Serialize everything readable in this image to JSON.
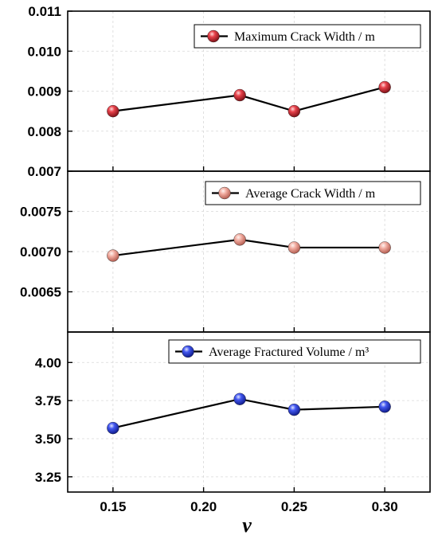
{
  "chart_data": [
    {
      "type": "line",
      "x": [
        0.15,
        0.22,
        0.25,
        0.3
      ],
      "series": [
        {
          "name": "Maximum Crack Width / m",
          "values": [
            0.0085,
            0.0089,
            0.0085,
            0.0091
          ],
          "color": "#e0353f"
        }
      ],
      "ylim": [
        0.007,
        0.011
      ],
      "yticks": [
        "0.007",
        "0.008",
        "0.009",
        "0.010",
        "0.011"
      ],
      "legend": "top-right",
      "grid": true
    },
    {
      "type": "line",
      "x": [
        0.15,
        0.22,
        0.25,
        0.3
      ],
      "series": [
        {
          "name": "Average Crack Width / m",
          "values": [
            0.00695,
            0.00715,
            0.00705,
            0.00705
          ],
          "color": "#f0a89c"
        }
      ],
      "ylim": [
        0.006,
        0.008
      ],
      "yticks": [
        "0.0065",
        "0.0070",
        "0.0075"
      ],
      "legend": "top-right",
      "grid": true
    },
    {
      "type": "line",
      "x": [
        0.15,
        0.22,
        0.25,
        0.3
      ],
      "series": [
        {
          "name": "Average Fractured Volume / m³",
          "values": [
            3.57,
            3.76,
            3.69,
            3.71
          ],
          "color": "#3a4ee6"
        }
      ],
      "ylim": [
        3.15,
        4.2
      ],
      "yticks": [
        "3.25",
        "3.50",
        "3.75",
        "4.00"
      ],
      "legend": "top-right",
      "grid": true
    }
  ],
  "xaxis": {
    "xlim": [
      0.125,
      0.325
    ],
    "ticks": [
      "0.15",
      "0.20",
      "0.25",
      "0.30"
    ],
    "label": "ν"
  }
}
